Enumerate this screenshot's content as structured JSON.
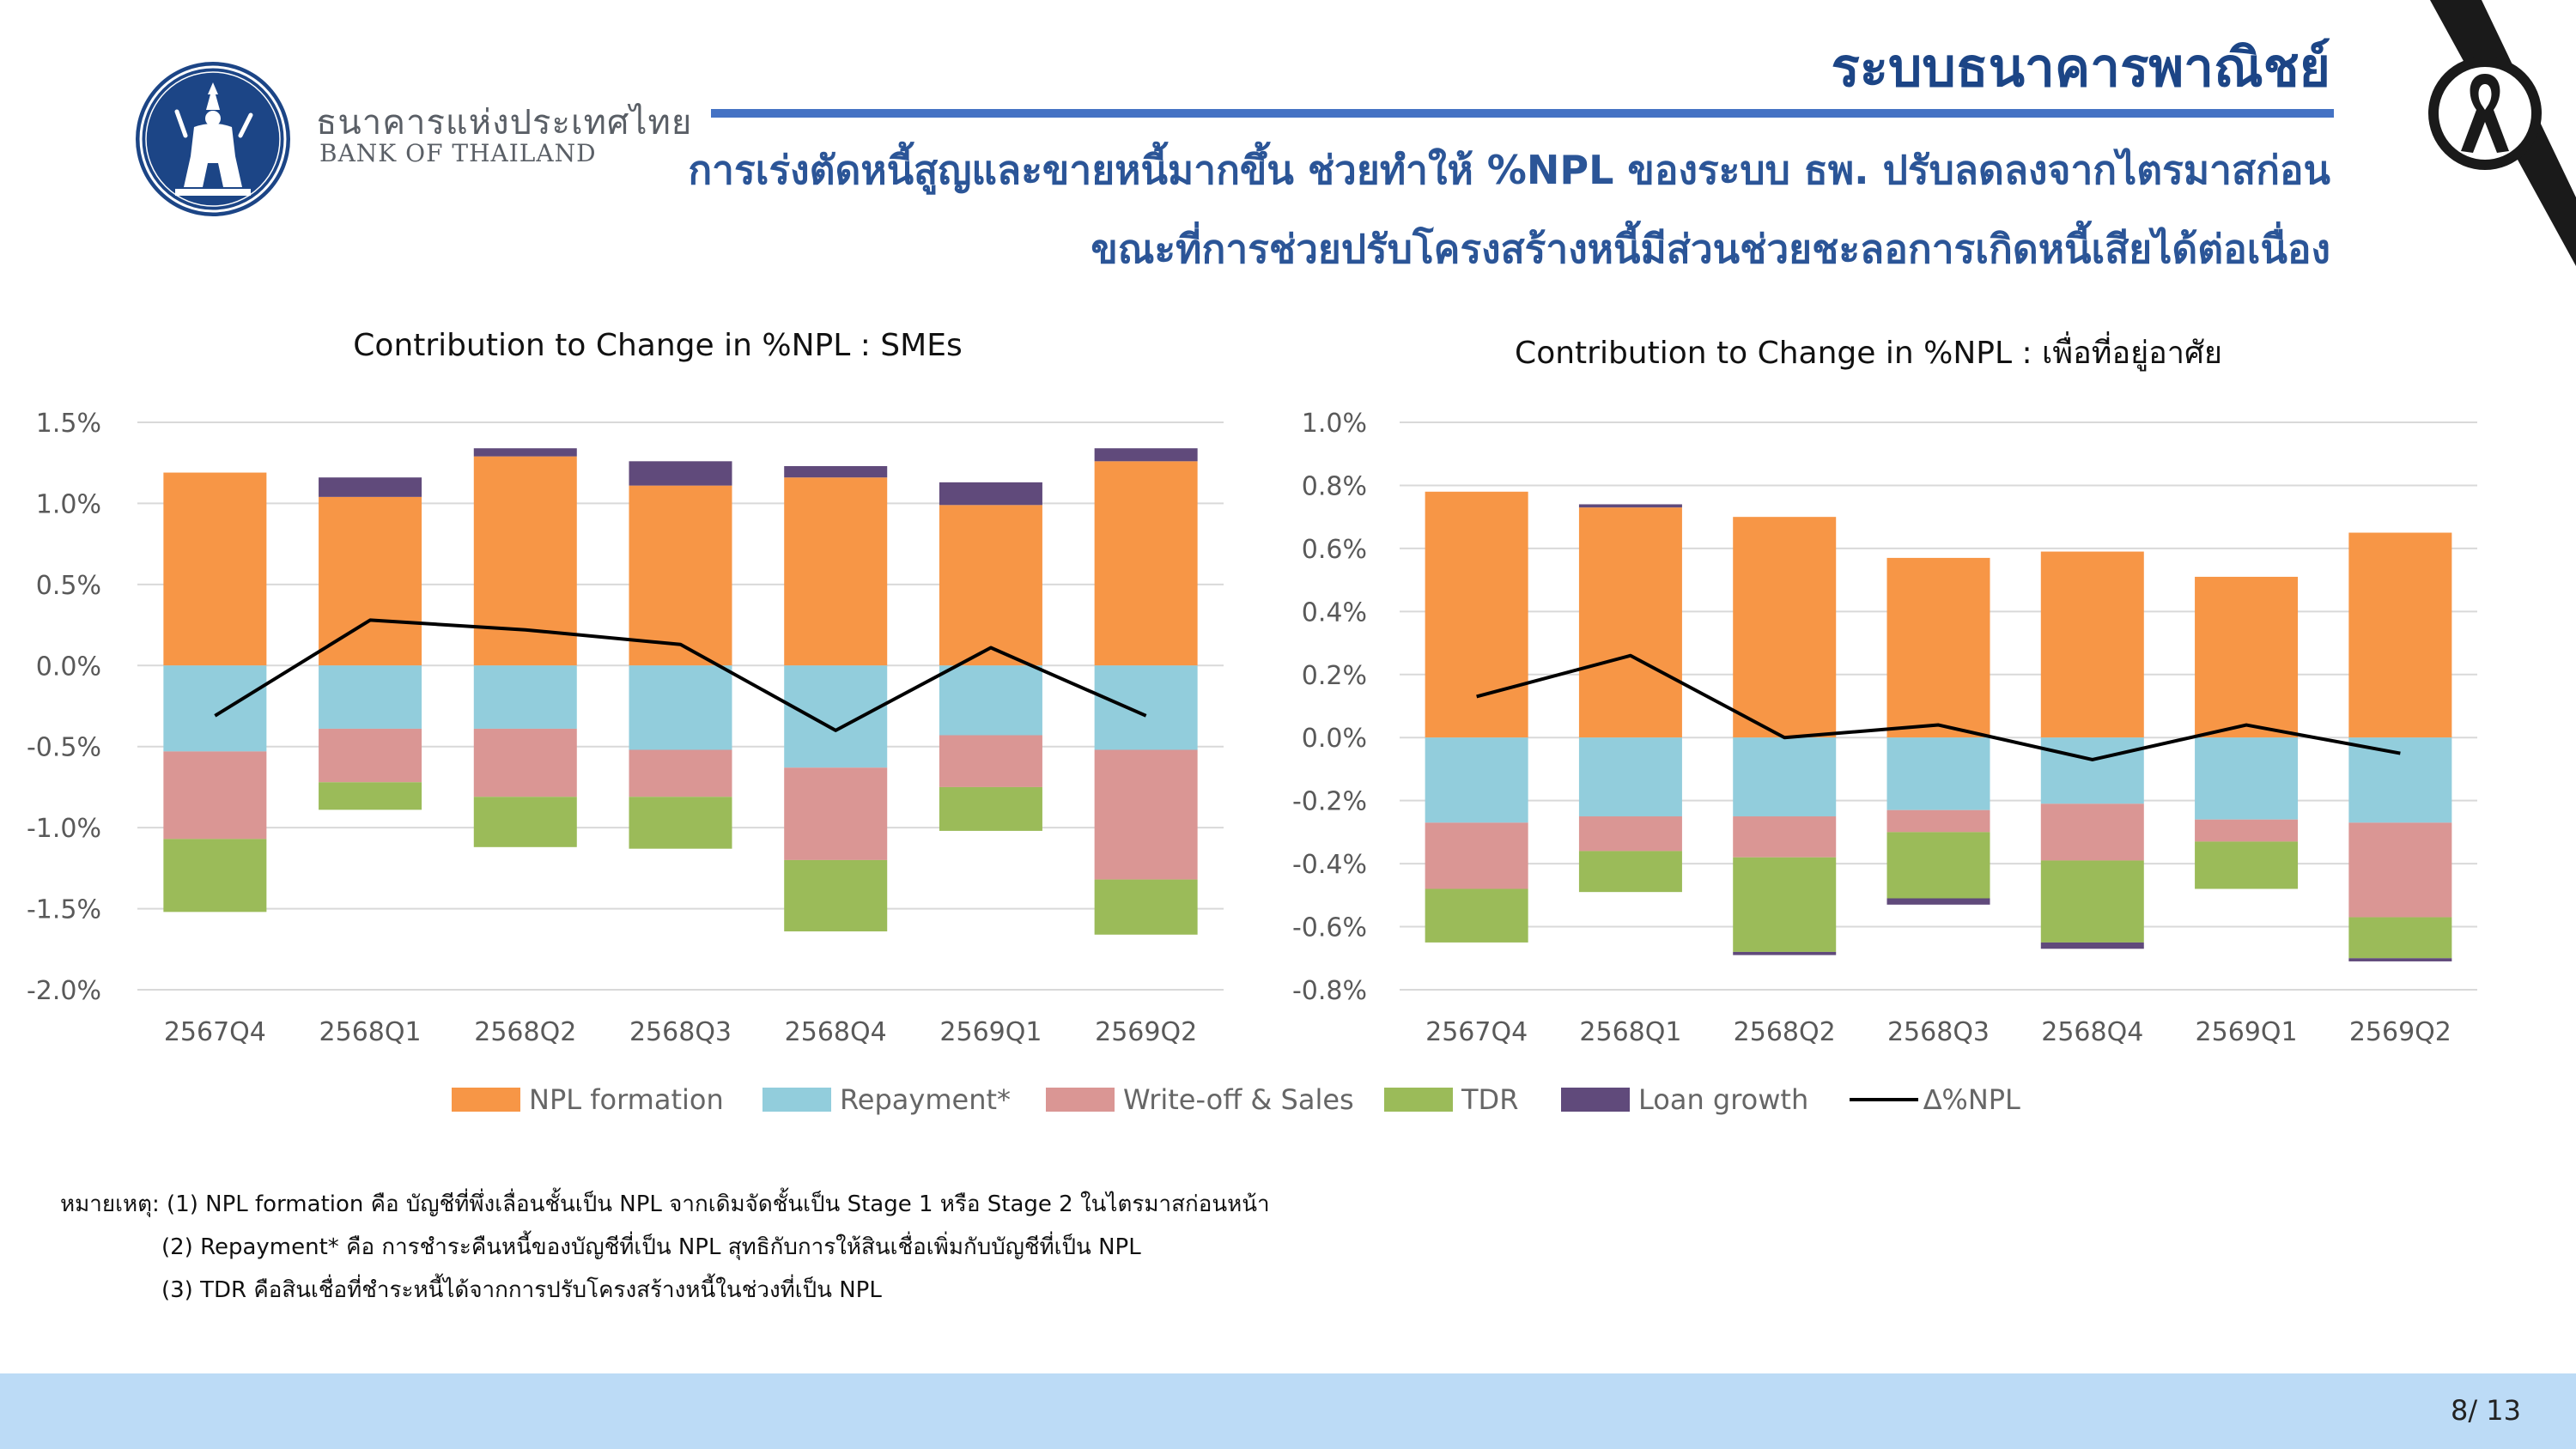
{
  "header": {
    "bank_name_th": "ธนาคารแห่งประเทศไทย",
    "bank_name_en": "BANK OF THAILAND",
    "section_title": "ระบบธนาคารพาณิชย์",
    "headline_line1": "การเร่งตัดหนี้สูญและขายหนี้มากขึ้น ช่วยทำให้ %NPL ของระบบ ธพ. ปรับลดลงจากไตรมาสก่อน",
    "headline_line2": "ขณะที่การช่วยปรับโครงสร้างหนี้มีส่วนช่วยชะลอการเกิดหนี้เสียได้ต่อเนื่อง"
  },
  "colors": {
    "npl_formation": "#f79646",
    "repayment": "#92cddc",
    "writeoff_sales": "#da9694",
    "tdr": "#9bbb59",
    "loan_growth": "#604a7b",
    "delta_npl": "#000000",
    "brand_navy": "#1c4586",
    "footer_band": "#bcdbf6"
  },
  "legend": {
    "npl_formation": "NPL formation",
    "repayment": "Repayment*",
    "writeoff_sales": "Write-off & Sales",
    "tdr": "TDR",
    "loan_growth": "Loan growth",
    "delta_npl": "∆%NPL"
  },
  "chart_data": [
    {
      "type": "bar",
      "stacked": true,
      "title": "Contribution to Change in %NPL : SMEs",
      "categories": [
        "2567Q4",
        "2568Q1",
        "2568Q2",
        "2568Q3",
        "2568Q4",
        "2569Q1",
        "2569Q2"
      ],
      "ylim": [
        -2.0,
        1.5
      ],
      "yticks": [
        1.5,
        1.0,
        0.5,
        0.0,
        -0.5,
        -1.0,
        -1.5,
        -2.0
      ],
      "ytick_labels": [
        "1.5%",
        "1.0%",
        "0.5%",
        "0.0%",
        "-0.5%",
        "-1.0%",
        "-1.5%",
        "-2.0%"
      ],
      "grid": true,
      "series": [
        {
          "name": "NPL formation",
          "values": [
            1.19,
            1.04,
            1.29,
            1.11,
            1.16,
            0.99,
            1.26
          ]
        },
        {
          "name": "Repayment*",
          "values": [
            -0.53,
            -0.39,
            -0.39,
            -0.52,
            -0.63,
            -0.43,
            -0.52
          ]
        },
        {
          "name": "Write-off & Sales",
          "values": [
            -0.54,
            -0.33,
            -0.42,
            -0.29,
            -0.57,
            -0.32,
            -0.8
          ]
        },
        {
          "name": "TDR",
          "values": [
            -0.45,
            -0.17,
            -0.31,
            -0.32,
            -0.44,
            -0.27,
            -0.34
          ]
        },
        {
          "name": "Loan growth",
          "values": [
            0.0,
            0.12,
            0.05,
            0.15,
            0.07,
            0.14,
            0.08
          ]
        }
      ],
      "line": {
        "name": "∆%NPL",
        "values": [
          -0.31,
          0.28,
          0.22,
          0.13,
          -0.4,
          0.11,
          -0.31
        ]
      }
    },
    {
      "type": "bar",
      "stacked": true,
      "title": "Contribution to Change in %NPL : เพื่อที่อยู่อาศัย",
      "categories": [
        "2567Q4",
        "2568Q1",
        "2568Q2",
        "2568Q3",
        "2568Q4",
        "2569Q1",
        "2569Q2"
      ],
      "ylim": [
        -0.8,
        1.0
      ],
      "yticks": [
        1.0,
        0.8,
        0.6,
        0.4,
        0.2,
        0.0,
        -0.2,
        -0.4,
        -0.6,
        -0.8
      ],
      "ytick_labels": [
        "1.0%",
        "0.8%",
        "0.6%",
        "0.4%",
        "0.2%",
        "0.0%",
        "-0.2%",
        "-0.4%",
        "-0.6%",
        "-0.8%"
      ],
      "grid": true,
      "series": [
        {
          "name": "NPL formation",
          "values": [
            0.78,
            0.73,
            0.7,
            0.57,
            0.59,
            0.51,
            0.65
          ]
        },
        {
          "name": "Repayment*",
          "values": [
            -0.27,
            -0.25,
            -0.25,
            -0.23,
            -0.21,
            -0.26,
            -0.27
          ]
        },
        {
          "name": "Write-off & Sales",
          "values": [
            -0.21,
            -0.11,
            -0.13,
            -0.07,
            -0.18,
            -0.07,
            -0.3
          ]
        },
        {
          "name": "TDR",
          "values": [
            -0.17,
            -0.13,
            -0.3,
            -0.21,
            -0.26,
            -0.15,
            -0.13
          ]
        },
        {
          "name": "Loan growth",
          "values": [
            0.0,
            0.01,
            -0.01,
            -0.02,
            -0.02,
            0.0,
            -0.01
          ]
        }
      ],
      "line": {
        "name": "∆%NPL",
        "values": [
          0.13,
          0.26,
          0.0,
          0.04,
          -0.07,
          0.04,
          -0.05
        ]
      }
    }
  ],
  "notes": {
    "line1": "หมายเหตุ: (1) NPL formation คือ บัญชีที่พึ่งเลื่อนชั้นเป็น NPL จากเดิมจัดชั้นเป็น Stage 1 หรือ Stage 2 ในไตรมาสก่อนหน้า",
    "line2": "(2) Repayment* คือ การชำระคืนหนี้ของบัญชีที่เป็น NPL สุทธิกับการให้สินเชื่อเพิ่มกับบัญชีที่เป็น NPL",
    "line3": "(3) TDR คือสินเชื่อที่ชำระหนี้ได้จากการปรับโครงสร้างหนี้ในช่วงที่เป็น NPL"
  },
  "footer": {
    "page_number": "8/ 13"
  }
}
